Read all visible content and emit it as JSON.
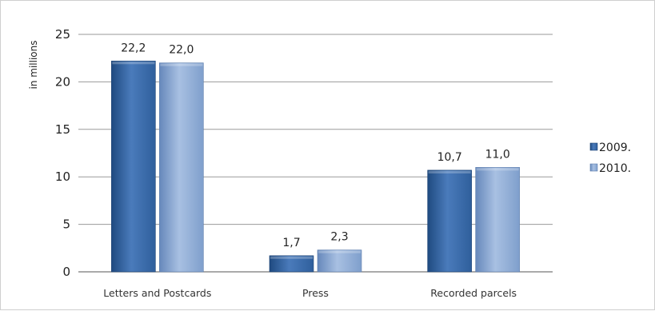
{
  "chart_data": {
    "type": "bar",
    "categories": [
      "Letters and Postcards",
      "Press",
      "Recorded parcels"
    ],
    "series": [
      {
        "name": "2009.",
        "values": [
          22.2,
          1.7,
          10.7
        ],
        "labels": [
          "22,2",
          "1,7",
          "10,7"
        ],
        "color": "#2f5f9c"
      },
      {
        "name": "2010.",
        "values": [
          22.0,
          2.3,
          11.0
        ],
        "labels": [
          "22,0",
          "2,3",
          "11,0"
        ],
        "color": "#7f9fcc"
      }
    ],
    "ylabel": "in millions",
    "ylim": [
      0,
      25
    ],
    "yticks": [
      0,
      5,
      10,
      15,
      20,
      25
    ],
    "grid": true,
    "legend": "right"
  }
}
